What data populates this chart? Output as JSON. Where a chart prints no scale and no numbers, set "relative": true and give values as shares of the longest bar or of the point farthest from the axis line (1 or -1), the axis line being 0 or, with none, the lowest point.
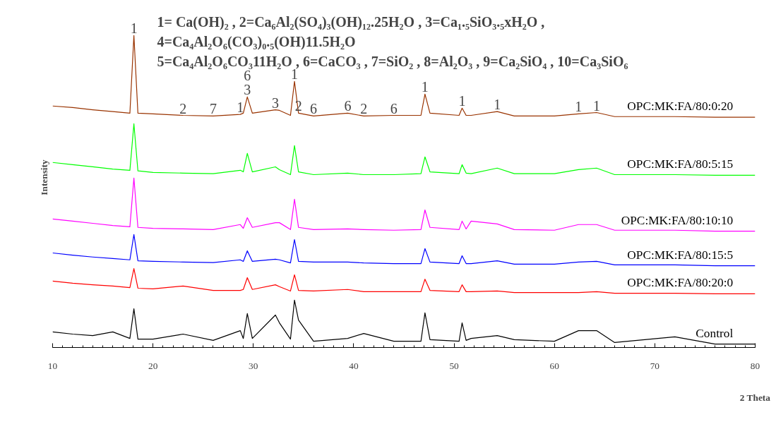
{
  "chart_data": {
    "type": "line",
    "relative": true,
    "xlabel": "2 Theta",
    "ylabel": "Intensity",
    "xlim": [
      10,
      80
    ],
    "xticks": [
      10,
      20,
      30,
      40,
      50,
      60,
      70,
      80
    ],
    "x": [
      10,
      12,
      14,
      16,
      17.7,
      18.1,
      18.5,
      20,
      23,
      26,
      28.7,
      29.0,
      29.4,
      29.9,
      32.2,
      32.6,
      33.7,
      34.1,
      34.5,
      36,
      39.4,
      41,
      44,
      46.7,
      47.1,
      47.6,
      50.5,
      50.8,
      51.2,
      51.7,
      54.3,
      56,
      60,
      62.4,
      64.2,
      66,
      72,
      76,
      80
    ],
    "series": [
      {
        "name": "OPC:MK:FA/80:0:20",
        "color": "#993300",
        "values": [
          0.774,
          0.769,
          0.762,
          0.756,
          0.751,
          1.0,
          0.751,
          0.749,
          0.744,
          0.742,
          0.747,
          0.751,
          0.803,
          0.751,
          0.762,
          0.76,
          0.744,
          0.853,
          0.751,
          0.742,
          0.751,
          0.742,
          0.744,
          0.744,
          0.812,
          0.751,
          0.744,
          0.767,
          0.744,
          0.744,
          0.756,
          0.742,
          0.742,
          0.749,
          0.753,
          0.74,
          0.74,
          0.738,
          0.738
        ]
      },
      {
        "name": "OPC:MK:FA/80:5:15",
        "color": "#00ff00",
        "values": [
          0.593,
          0.586,
          0.579,
          0.572,
          0.568,
          0.717,
          0.566,
          0.561,
          0.559,
          0.557,
          0.568,
          0.563,
          0.622,
          0.563,
          0.579,
          0.57,
          0.554,
          0.647,
          0.563,
          0.554,
          0.559,
          0.554,
          0.554,
          0.557,
          0.611,
          0.563,
          0.557,
          0.586,
          0.559,
          0.557,
          0.575,
          0.557,
          0.557,
          0.57,
          0.575,
          0.554,
          0.554,
          0.552,
          0.552
        ]
      },
      {
        "name": "OPC:MK:FA/80:10:10",
        "color": "#ff00ff",
        "values": [
          0.412,
          0.405,
          0.398,
          0.391,
          0.387,
          0.543,
          0.385,
          0.382,
          0.38,
          0.378,
          0.394,
          0.382,
          0.416,
          0.385,
          0.4,
          0.4,
          0.378,
          0.475,
          0.385,
          0.378,
          0.38,
          0.378,
          0.376,
          0.378,
          0.441,
          0.385,
          0.378,
          0.405,
          0.38,
          0.405,
          0.396,
          0.378,
          0.376,
          0.394,
          0.394,
          0.376,
          0.376,
          0.373,
          0.373
        ]
      },
      {
        "name": "OPC:MK:FA/80:15:5",
        "color": "#0000ff",
        "values": [
          0.303,
          0.296,
          0.29,
          0.285,
          0.281,
          0.362,
          0.278,
          0.276,
          0.274,
          0.272,
          0.281,
          0.276,
          0.31,
          0.276,
          0.283,
          0.281,
          0.271,
          0.346,
          0.276,
          0.274,
          0.274,
          0.271,
          0.269,
          0.269,
          0.317,
          0.274,
          0.269,
          0.294,
          0.269,
          0.269,
          0.278,
          0.267,
          0.267,
          0.274,
          0.276,
          0.265,
          0.265,
          0.262,
          0.262
        ]
      },
      {
        "name": "OPC:MK:FA/80:20:0",
        "color": "#ff0000",
        "values": [
          0.213,
          0.206,
          0.201,
          0.197,
          0.192,
          0.253,
          0.19,
          0.188,
          0.197,
          0.183,
          0.183,
          0.186,
          0.224,
          0.186,
          0.201,
          0.195,
          0.181,
          0.233,
          0.183,
          0.181,
          0.186,
          0.179,
          0.179,
          0.179,
          0.219,
          0.183,
          0.179,
          0.201,
          0.179,
          0.179,
          0.181,
          0.176,
          0.176,
          0.176,
          0.179,
          0.174,
          0.174,
          0.172,
          0.172
        ]
      },
      {
        "name": "Control",
        "color": "#000000",
        "values": [
          0.05,
          0.043,
          0.038,
          0.05,
          0.029,
          0.124,
          0.027,
          0.027,
          0.043,
          0.023,
          0.054,
          0.029,
          0.109,
          0.029,
          0.104,
          0.079,
          0.027,
          0.152,
          0.088,
          0.02,
          0.029,
          0.045,
          0.02,
          0.02,
          0.111,
          0.025,
          0.02,
          0.079,
          0.023,
          0.029,
          0.038,
          0.025,
          0.02,
          0.054,
          0.054,
          0.016,
          0.034,
          0.011,
          0.011
        ]
      }
    ],
    "annotations": [
      "1= Ca(OH)₂  , 2=Ca₆Al₂(SO₄)₃(OH)₁₂.25H₂O  , 3=Ca₁.₅SiO₃.₅xH₂O  ,",
      "4=Ca₄Al₂O₆(CO₃)₀.₅(OH)11.5H₂O",
      "5=Ca₄Al₂O₆CO₃11H₂O  , 6=CaCO₃ , 7=SiO₂  , 8=Al₂O₃  , 9=Ca₂SiO₄  , 10=Ca₃SiO₆",
      {
        "text": "1",
        "x": 18.1,
        "y": 1.0
      },
      {
        "text": "2",
        "x": 23,
        "y": 0.744
      },
      {
        "text": "7",
        "x": 26,
        "y": 0.742
      },
      {
        "text": "1",
        "x": 28.7,
        "y": 0.747
      },
      {
        "text": "3",
        "x": 29.4,
        "y": 0.803
      },
      {
        "text": "6",
        "x": 29.4,
        "y": 0.803
      },
      {
        "text": "3",
        "x": 32.2,
        "y": 0.762
      },
      {
        "text": "1",
        "x": 34.1,
        "y": 0.853
      },
      {
        "text": "2",
        "x": 34.5,
        "y": 0.751
      },
      {
        "text": "6",
        "x": 36,
        "y": 0.742
      },
      {
        "text": "6",
        "x": 39.4,
        "y": 0.751
      },
      {
        "text": "2",
        "x": 41,
        "y": 0.742
      },
      {
        "text": "6",
        "x": 44,
        "y": 0.744
      },
      {
        "text": "1",
        "x": 47.1,
        "y": 0.812
      },
      {
        "text": "1",
        "x": 50.8,
        "y": 0.767
      },
      {
        "text": "1",
        "x": 54.3,
        "y": 0.756
      },
      {
        "text": "1",
        "x": 62.4,
        "y": 0.749
      },
      {
        "text": "1",
        "x": 64.2,
        "y": 0.753
      }
    ]
  }
}
